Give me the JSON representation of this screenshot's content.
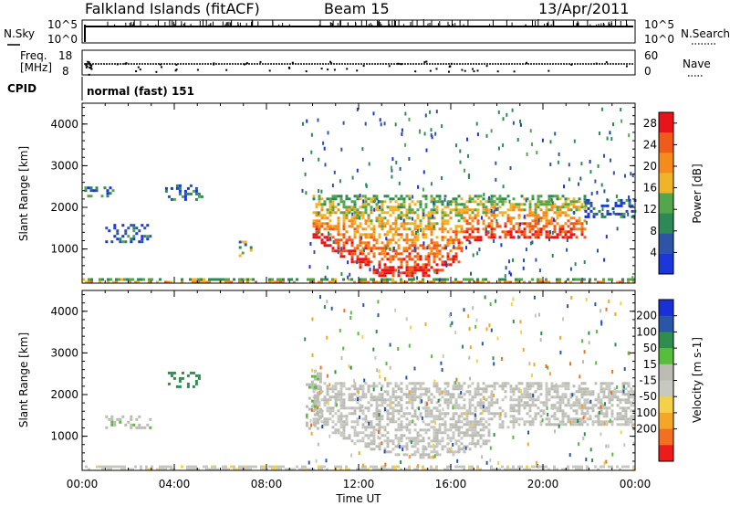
{
  "header": {
    "station": "Falkland Islands (fitACF)",
    "beam": "Beam 15",
    "date": "13/Apr/2011"
  },
  "noise_panel": {
    "left_label": "N.Sky",
    "right_label": "N.Search",
    "left_ticks": [
      "10^5",
      "10^0"
    ],
    "right_ticks": [
      "10^5",
      "10^0"
    ]
  },
  "freq_panel": {
    "left_label_line1": "Freq.",
    "left_label_line2": "[MHz]",
    "right_label": "Nave",
    "left_ticks": [
      "18",
      "8"
    ],
    "right_ticks": [
      "60",
      "0"
    ]
  },
  "cpid_panel": {
    "label": "CPID",
    "value": "normal (fast) 151"
  },
  "colors": {
    "power_scale": [
      "#1b36d9",
      "#2e55a5",
      "#2d8a56",
      "#53a64a",
      "#f0b42a",
      "#f58a1d",
      "#f05a1a",
      "#e8141a"
    ],
    "velocity_scale": [
      "#ee1b1b",
      "#f2701f",
      "#f4a626",
      "#f5d14a",
      "#c8c8c3",
      "#bcbcb5",
      "#56be3a",
      "#2f8e4f",
      "#2a55a8",
      "#1b2fd8"
    ]
  },
  "chart_data": [
    {
      "type": "heatmap",
      "quantity": "Power",
      "xlabel": "Time UT",
      "ylabel": "Slant Range [km]",
      "xlim": [
        0,
        24
      ],
      "ylim": [
        180,
        4500
      ],
      "x_tick_labels": [
        "00:00",
        "04:00",
        "08:00",
        "12:00",
        "16:00",
        "20:00",
        "00:00"
      ],
      "y_tick_labels": [
        "1000",
        "2000",
        "3000",
        "4000"
      ],
      "y_ticks": [
        1000,
        2000,
        3000,
        4000
      ],
      "colorbar": {
        "label": "Power [dB]",
        "range": [
          0,
          30
        ],
        "tick_labels": [
          "4",
          "8",
          "12",
          "16",
          "20",
          "24",
          "28"
        ],
        "ticks": [
          4,
          8,
          12,
          16,
          20,
          24,
          28
        ]
      },
      "features": [
        {
          "t0": 10.0,
          "t1": 21.8,
          "r0": 350,
          "r1": 2300,
          "value": 22
        },
        {
          "t0": 0.0,
          "t1": 24.0,
          "r0": 180,
          "r1": 300,
          "value": 8
        },
        {
          "t0": 0.1,
          "t1": 1.3,
          "r0": 2250,
          "r1": 2500,
          "value": 6
        },
        {
          "t0": 3.6,
          "t1": 5.2,
          "r0": 2200,
          "r1": 2550,
          "value": 5
        },
        {
          "t0": 1.0,
          "t1": 3.0,
          "r0": 1200,
          "r1": 1600,
          "value": 7
        },
        {
          "t0": 6.8,
          "t1": 7.3,
          "r0": 800,
          "r1": 1200,
          "value": 12
        },
        {
          "t0": 21.8,
          "t1": 24.0,
          "r0": 1800,
          "r1": 2200,
          "value": 5
        }
      ]
    },
    {
      "type": "heatmap",
      "quantity": "Velocity",
      "xlabel": "Time UT",
      "ylabel": "Slant Range [km]",
      "xlim": [
        0,
        24
      ],
      "ylim": [
        180,
        4500
      ],
      "x_tick_labels": [
        "00:00",
        "04:00",
        "08:00",
        "12:00",
        "16:00",
        "20:00",
        "00:00"
      ],
      "y_tick_labels": [
        "1000",
        "2000",
        "3000",
        "4000"
      ],
      "y_ticks": [
        1000,
        2000,
        3000,
        4000
      ],
      "colorbar": {
        "label": "Velocity [m s-1]",
        "range": [
          -250,
          250
        ],
        "tick_labels": [
          "200",
          "100",
          "50",
          "15",
          "-15",
          "-50",
          "-100",
          "-200"
        ],
        "ticks": [
          200,
          100,
          50,
          15,
          -15,
          -50,
          -100,
          -200
        ]
      },
      "features": [
        {
          "t0": 10.0,
          "t1": 24.0,
          "r0": 400,
          "r1": 2300,
          "value": 0
        },
        {
          "t0": 9.7,
          "t1": 10.3,
          "r0": 1200,
          "r1": 2600,
          "value": 40
        },
        {
          "t0": 3.6,
          "t1": 5.2,
          "r0": 2200,
          "r1": 2550,
          "value": 120
        },
        {
          "t0": 1.0,
          "t1": 3.0,
          "r0": 1200,
          "r1": 1500,
          "value": 40
        },
        {
          "t0": 0.0,
          "t1": 24.0,
          "r0": 180,
          "r1": 300,
          "value": -40
        }
      ]
    }
  ]
}
